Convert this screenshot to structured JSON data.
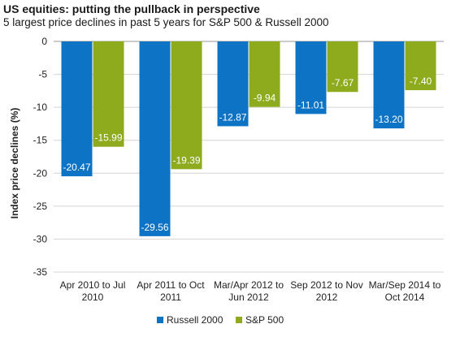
{
  "header": {
    "title": "US equities: putting the pullback in perspective",
    "subtitle": "5 largest price declines in past 5 years for S&P 500 & Russell 2000"
  },
  "chart_data": {
    "type": "bar",
    "title": "US equities: putting the pullback in perspective",
    "subtitle": "5 largest price declines in past 5 years for S&P 500 & Russell 2000",
    "xlabel": "",
    "ylabel": "Index price declines (%)",
    "ylim": [
      -35,
      0
    ],
    "yticks": [
      0,
      -5,
      -10,
      -15,
      -20,
      -25,
      -30,
      -35
    ],
    "grid": true,
    "legend_position": "bottom",
    "categories": [
      [
        "Apr 2010 to Jul",
        "2010"
      ],
      [
        "Apr 2011 to Oct",
        "2011"
      ],
      [
        "Mar/Apr 2012 to",
        "Jun 2012"
      ],
      [
        "Sep 2012 to Nov",
        "2012"
      ],
      [
        "Mar/Sep 2014 to",
        "Oct 2014"
      ]
    ],
    "series": [
      {
        "name": "Russell 2000",
        "color": "#0d73c5",
        "values": [
          -20.47,
          -29.56,
          -12.87,
          -11.01,
          -13.2
        ],
        "labels": [
          "-20.47",
          "-29.56",
          "-12.87",
          "-11.01",
          "-13.20"
        ]
      },
      {
        "name": "S&P 500",
        "color": "#8dab1c",
        "values": [
          -15.99,
          -19.39,
          -9.94,
          -7.67,
          -7.4
        ],
        "labels": [
          "-15.99",
          "-19.39",
          "-9.94",
          "-7.67",
          "-7.40"
        ]
      }
    ]
  }
}
